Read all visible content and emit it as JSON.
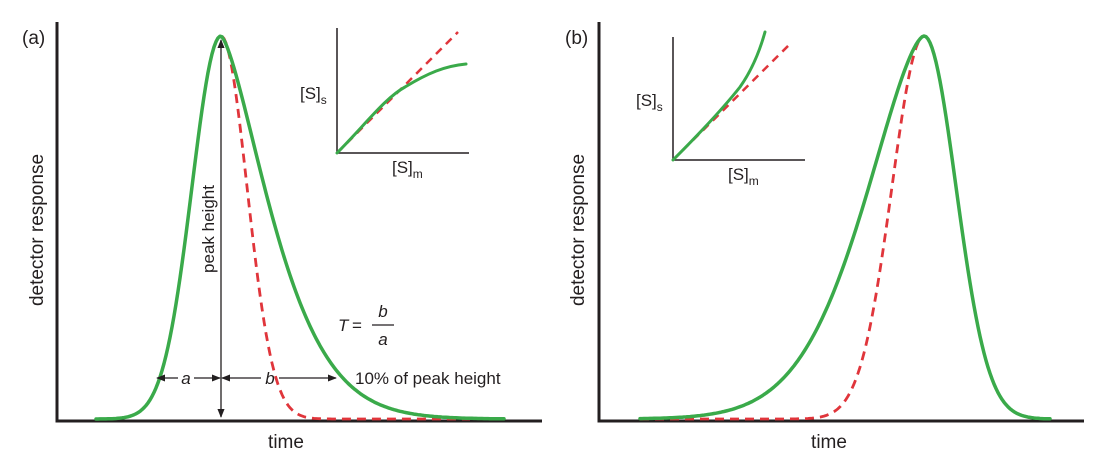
{
  "panels": {
    "a": {
      "label": "(a)",
      "xlabel": "time",
      "ylabel": "detector response",
      "peak_height_label": "peak height",
      "a_label": "a",
      "b_label": "b",
      "tenpct_label": "10% of peak height",
      "formula": {
        "lhs": "T",
        "eq": "=",
        "num": "b",
        "den": "a"
      },
      "inset": {
        "ylabel": "[S]",
        "ysub": "s",
        "xlabel": "[S]",
        "xsub": "m"
      }
    },
    "b": {
      "label": "(b)",
      "xlabel": "time",
      "ylabel": "detector response",
      "inset": {
        "ylabel": "[S]",
        "ysub": "s",
        "xlabel": "[S]",
        "xsub": "m"
      }
    }
  },
  "colors": {
    "actual_peak": "#3aaa4a",
    "ideal_peak": "#e0353b",
    "axes": "#231f20"
  }
}
